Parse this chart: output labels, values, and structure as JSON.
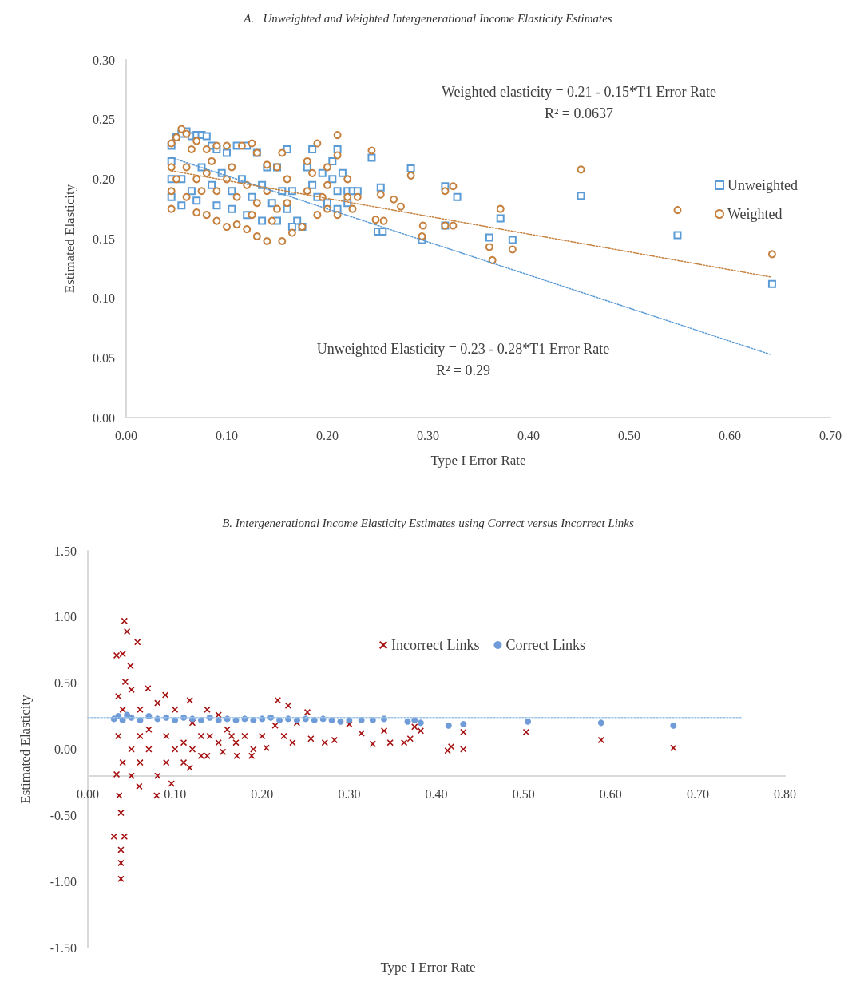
{
  "chart_data": [
    {
      "type": "scatter",
      "title": "A.   Unweighted and Weighted Intergenerational Income Elasticity Estimates",
      "xlabel": "Type I Error Rate",
      "ylabel": "Estimated Elasticity",
      "xlim": [
        0,
        0.7
      ],
      "xticks": [
        {
          "value": 0,
          "label": "0.00"
        },
        {
          "value": 0.1,
          "label": "0.10"
        },
        {
          "value": 0.2,
          "label": "0.20"
        },
        {
          "value": 0.3,
          "label": "0.30"
        },
        {
          "value": 0.4,
          "label": "0.40"
        },
        {
          "value": 0.5,
          "label": "0.50"
        },
        {
          "value": 0.6,
          "label": "0.60"
        },
        {
          "value": 0.7,
          "label": "0.70"
        }
      ],
      "ylim": [
        0,
        0.3
      ],
      "yticks": [
        {
          "value": 0,
          "label": "0.00"
        },
        {
          "value": 0.05,
          "label": "0.05"
        },
        {
          "value": 0.1,
          "label": "0.10"
        },
        {
          "value": 0.15,
          "label": "0.15"
        },
        {
          "value": 0.2,
          "label": "0.20"
        },
        {
          "value": 0.25,
          "label": "0.25"
        },
        {
          "value": 0.3,
          "label": "0.30"
        }
      ],
      "grid": false,
      "legend": "right",
      "annotations": [
        "Weighted elasticity = 0.21 - 0.15*T1 Error Rate",
        "R² = 0.0637",
        "Unweighted Elasticity = 0.23 - 0.28*T1 Error Rate",
        "R² = 0.29"
      ],
      "series": [
        {
          "name": "Unweighted",
          "color": "#5b9bd5",
          "marker": "square",
          "x": [
            0.045,
            0.045,
            0.045,
            0.045,
            0.05,
            0.055,
            0.06,
            0.065,
            0.07,
            0.075,
            0.08,
            0.085,
            0.09,
            0.1,
            0.11,
            0.12,
            0.13,
            0.14,
            0.15,
            0.16,
            0.055,
            0.065,
            0.075,
            0.085,
            0.095,
            0.105,
            0.115,
            0.125,
            0.135,
            0.145,
            0.155,
            0.165,
            0.16,
            0.17,
            0.175,
            0.165,
            0.15,
            0.135,
            0.12,
            0.105,
            0.09,
            0.07,
            0.055,
            0.18,
            0.185,
            0.195,
            0.205,
            0.21,
            0.215,
            0.22,
            0.225,
            0.23,
            0.21,
            0.2,
            0.19,
            0.205,
            0.185,
            0.22,
            0.21,
            0.244,
            0.253,
            0.25,
            0.255,
            0.283,
            0.294,
            0.317,
            0.329,
            0.317,
            0.361,
            0.372,
            0.384,
            0.452,
            0.548,
            0.642
          ],
          "values": [
            0.228,
            0.215,
            0.2,
            0.185,
            0.235,
            0.238,
            0.24,
            0.236,
            0.237,
            0.237,
            0.236,
            0.228,
            0.225,
            0.222,
            0.228,
            0.228,
            0.222,
            0.21,
            0.21,
            0.225,
            0.2,
            0.19,
            0.21,
            0.195,
            0.205,
            0.19,
            0.2,
            0.185,
            0.195,
            0.18,
            0.19,
            0.19,
            0.175,
            0.165,
            0.16,
            0.16,
            0.165,
            0.165,
            0.17,
            0.175,
            0.178,
            0.182,
            0.178,
            0.21,
            0.225,
            0.205,
            0.215,
            0.225,
            0.205,
            0.19,
            0.19,
            0.19,
            0.19,
            0.18,
            0.185,
            0.2,
            0.195,
            0.18,
            0.175,
            0.218,
            0.193,
            0.156,
            0.156,
            0.209,
            0.149,
            0.194,
            0.185,
            0.161,
            0.151,
            0.167,
            0.149,
            0.186,
            0.153,
            0.112
          ]
        },
        {
          "name": "Weighted",
          "color": "#c5803e",
          "marker": "circle",
          "x": [
            0.045,
            0.045,
            0.045,
            0.045,
            0.05,
            0.055,
            0.06,
            0.065,
            0.07,
            0.08,
            0.09,
            0.1,
            0.115,
            0.125,
            0.13,
            0.14,
            0.15,
            0.155,
            0.05,
            0.06,
            0.07,
            0.08,
            0.09,
            0.1,
            0.11,
            0.12,
            0.13,
            0.14,
            0.155,
            0.165,
            0.175,
            0.06,
            0.07,
            0.08,
            0.09,
            0.1,
            0.11,
            0.12,
            0.13,
            0.14,
            0.15,
            0.16,
            0.145,
            0.125,
            0.105,
            0.085,
            0.075,
            0.16,
            0.18,
            0.19,
            0.2,
            0.21,
            0.21,
            0.22,
            0.22,
            0.2,
            0.19,
            0.21,
            0.23,
            0.18,
            0.2,
            0.185,
            0.195,
            0.225,
            0.244,
            0.253,
            0.248,
            0.256,
            0.266,
            0.273,
            0.283,
            0.295,
            0.294,
            0.317,
            0.325,
            0.325,
            0.317,
            0.372,
            0.361,
            0.364,
            0.384,
            0.452,
            0.548,
            0.642
          ],
          "values": [
            0.23,
            0.21,
            0.19,
            0.175,
            0.235,
            0.242,
            0.238,
            0.225,
            0.232,
            0.225,
            0.228,
            0.228,
            0.228,
            0.23,
            0.222,
            0.212,
            0.21,
            0.222,
            0.2,
            0.185,
            0.172,
            0.17,
            0.165,
            0.16,
            0.162,
            0.158,
            0.152,
            0.148,
            0.148,
            0.155,
            0.16,
            0.21,
            0.2,
            0.205,
            0.19,
            0.2,
            0.185,
            0.195,
            0.18,
            0.19,
            0.175,
            0.18,
            0.165,
            0.17,
            0.21,
            0.215,
            0.19,
            0.2,
            0.215,
            0.23,
            0.21,
            0.237,
            0.22,
            0.2,
            0.185,
            0.175,
            0.17,
            0.17,
            0.185,
            0.19,
            0.195,
            0.205,
            0.185,
            0.175,
            0.224,
            0.187,
            0.166,
            0.165,
            0.183,
            0.177,
            0.203,
            0.161,
            0.152,
            0.161,
            0.161,
            0.194,
            0.19,
            0.175,
            0.143,
            0.132,
            0.141,
            0.208,
            0.174,
            0.137
          ]
        },
        {
          "type": "line",
          "color": "#5b9bd5",
          "marker": "none",
          "line_style": "dotted",
          "x": [
            0.045,
            0.64
          ],
          "values": [
            0.218,
            0.053
          ]
        },
        {
          "type": "line",
          "color": "#c5803e",
          "marker": "none",
          "line_style": "dotted",
          "x": [
            0.045,
            0.64
          ],
          "values": [
            0.207,
            0.118
          ]
        }
      ]
    },
    {
      "type": "scatter",
      "title": "B. Intergenerational Income Elasticity Estimates using Correct versus Incorrect Links",
      "xlabel": "Type I Error Rate",
      "ylabel": "Estimated Elasticity",
      "xlim": [
        0,
        0.8
      ],
      "xticks": [
        {
          "value": 0,
          "label": "0.00"
        },
        {
          "value": 0.1,
          "label": "0.10"
        },
        {
          "value": 0.2,
          "label": "0.20"
        },
        {
          "value": 0.3,
          "label": "0.30"
        },
        {
          "value": 0.4,
          "label": "0.40"
        },
        {
          "value": 0.5,
          "label": "0.50"
        },
        {
          "value": 0.6,
          "label": "0.60"
        },
        {
          "value": 0.7,
          "label": "0.70"
        },
        {
          "value": 0.8,
          "label": "0.80"
        }
      ],
      "ylim": [
        -1.5,
        1.5
      ],
      "yticks": [
        {
          "value": -1.5,
          "label": "-1.50"
        },
        {
          "value": -1,
          "label": "-1.00"
        },
        {
          "value": -0.5,
          "label": "-0.50"
        },
        {
          "value": 0,
          "label": "0.00"
        },
        {
          "value": 0.5,
          "label": "0.50"
        },
        {
          "value": 1,
          "label": "1.00"
        },
        {
          "value": 1.5,
          "label": "1.50"
        }
      ],
      "grid": false,
      "legend": "top right",
      "series": [
        {
          "name": "Incorrect Links",
          "color": "#a50f0f",
          "marker": "cross",
          "x": [
            0.042,
            0.045,
            0.057,
            0.033,
            0.04,
            0.049,
            0.043,
            0.035,
            0.04,
            0.033,
            0.038,
            0.042,
            0.03,
            0.038,
            0.038,
            0.038,
            0.036,
            0.04,
            0.035,
            0.05,
            0.069,
            0.089,
            0.117,
            0.137,
            0.15,
            0.059,
            0.079,
            0.096,
            0.117,
            0.137,
            0.171,
            0.188,
            0.205,
            0.06,
            0.07,
            0.08,
            0.09,
            0.1,
            0.11,
            0.12,
            0.13,
            0.06,
            0.07,
            0.08,
            0.09,
            0.1,
            0.11,
            0.12,
            0.14,
            0.15,
            0.16,
            0.17,
            0.18,
            0.19,
            0.05,
            0.05,
            0.06,
            0.13,
            0.155,
            0.165,
            0.2,
            0.218,
            0.23,
            0.252,
            0.215,
            0.225,
            0.235,
            0.24,
            0.256,
            0.272,
            0.283,
            0.3,
            0.314,
            0.327,
            0.34,
            0.347,
            0.363,
            0.37,
            0.375,
            0.382,
            0.413,
            0.417,
            0.431,
            0.431,
            0.503,
            0.589,
            0.672
          ],
          "values": [
            0.97,
            0.89,
            0.81,
            0.71,
            0.72,
            0.63,
            0.51,
            0.4,
            0.3,
            -0.19,
            -0.48,
            -0.66,
            -0.66,
            -0.76,
            -0.86,
            -0.98,
            -0.35,
            -0.1,
            0.1,
            0.45,
            0.46,
            0.41,
            0.37,
            0.3,
            0.26,
            -0.28,
            -0.35,
            -0.26,
            -0.14,
            -0.05,
            -0.05,
            -0.05,
            0.01,
            0.3,
            0.15,
            0.35,
            0.1,
            0.3,
            0.05,
            0.2,
            0.1,
            -0.1,
            0.0,
            -0.2,
            -0.1,
            0.0,
            -0.1,
            0.0,
            0.1,
            0.05,
            0.15,
            0.05,
            0.1,
            0.0,
            0.0,
            -0.2,
            0.1,
            -0.05,
            -0.02,
            0.1,
            0.1,
            0.37,
            0.33,
            0.28,
            0.18,
            0.1,
            0.05,
            0.2,
            0.08,
            0.05,
            0.07,
            0.19,
            0.12,
            0.04,
            0.14,
            0.05,
            0.05,
            0.08,
            0.17,
            0.14,
            -0.01,
            0.02,
            0.13,
            0.0,
            0.13,
            0.07,
            0.01
          ]
        },
        {
          "name": "Correct Links",
          "color": "#6f9bd8",
          "marker": "circle",
          "x": [
            0.03,
            0.035,
            0.04,
            0.045,
            0.05,
            0.06,
            0.07,
            0.08,
            0.09,
            0.1,
            0.11,
            0.12,
            0.13,
            0.14,
            0.15,
            0.16,
            0.17,
            0.18,
            0.19,
            0.2,
            0.21,
            0.22,
            0.23,
            0.24,
            0.25,
            0.26,
            0.27,
            0.28,
            0.29,
            0.3,
            0.314,
            0.327,
            0.34,
            0.367,
            0.375,
            0.382,
            0.414,
            0.431,
            0.505,
            0.589,
            0.672
          ],
          "values": [
            0.23,
            0.25,
            0.22,
            0.26,
            0.24,
            0.22,
            0.25,
            0.23,
            0.24,
            0.22,
            0.24,
            0.23,
            0.22,
            0.24,
            0.22,
            0.23,
            0.22,
            0.23,
            0.22,
            0.23,
            0.24,
            0.22,
            0.23,
            0.22,
            0.23,
            0.22,
            0.23,
            0.22,
            0.21,
            0.22,
            0.22,
            0.22,
            0.23,
            0.21,
            0.22,
            0.2,
            0.18,
            0.19,
            0.21,
            0.2,
            0.18
          ]
        },
        {
          "type": "line",
          "color": "#9dc3e6",
          "marker": "none",
          "line_style": "dotted",
          "x": [
            0,
            0.75
          ],
          "values": [
            0.24,
            0.24
          ]
        }
      ]
    }
  ]
}
